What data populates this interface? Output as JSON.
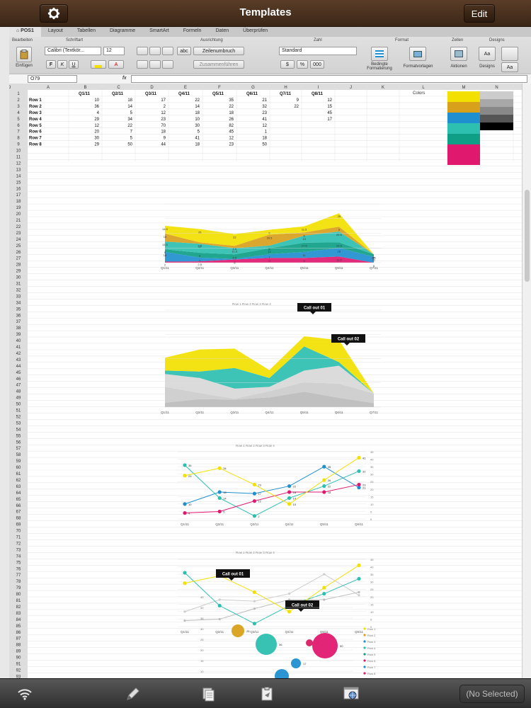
{
  "topbar": {
    "title": "Templates",
    "edit_label": "Edit"
  },
  "ribbon": {
    "tabs": [
      "POS1",
      "Layout",
      "Tabellen",
      "Diagramme",
      "SmartArt",
      "Formeln",
      "Daten",
      "Überprüfen"
    ],
    "groups": [
      "Bearbeiten",
      "Schriftart",
      "Ausrichtung",
      "Zahl",
      "Format",
      "Zellen",
      "Designs"
    ],
    "paste_label": "Einfügen",
    "font_name": "Calibri (Textkör...",
    "font_size": "12",
    "wrap_label": "Zeilenumbruch",
    "merge_label": "Zusammenführen",
    "number_format": "Standard",
    "cond_format_label": "Bedingte Formatierung",
    "format_templates_label": "Formatvorlagen",
    "actions_label": "Aktionen",
    "designs_label": "Designs",
    "cell_ref": "O79",
    "fx": "fx"
  },
  "sheet": {
    "columns": [
      "A",
      "B",
      "C",
      "D",
      "E",
      "F",
      "G",
      "H",
      "I",
      "J",
      "K",
      "L",
      "M",
      "N",
      "O"
    ],
    "header_row": [
      "",
      "Q1/11",
      "Q2/11",
      "Q3/11",
      "Q4/11",
      "Q5/11",
      "Q6/11",
      "Q7/11",
      "Q8/11"
    ],
    "rows": [
      [
        "Row 1",
        "10",
        "18",
        "17",
        "22",
        "35",
        "21",
        "9",
        "12"
      ],
      [
        "Row 2",
        "36",
        "14",
        "2",
        "14",
        "22",
        "32",
        "22",
        "15"
      ],
      [
        "Row 3",
        "4",
        "5",
        "12",
        "18",
        "18",
        "23",
        "",
        "45"
      ],
      [
        "Row 4",
        "29",
        "34",
        "23",
        "10",
        "26",
        "41",
        "",
        "17"
      ],
      [
        "Row 5",
        "12",
        "22",
        "70",
        "30",
        "82",
        "12",
        "",
        ""
      ],
      [
        "Row 6",
        "20",
        "7",
        "18",
        "5",
        "45",
        "1",
        "",
        ""
      ],
      [
        "Row 7",
        "30",
        "5",
        "9",
        "41",
        "12",
        "18",
        "",
        ""
      ],
      [
        "Row 8",
        "29",
        "50",
        "44",
        "18",
        "23",
        "50",
        "",
        ""
      ]
    ],
    "colors_label": "Colors",
    "palette": [
      "#f2e100",
      "#d9a01c",
      "#1f8fd0",
      "#2dbfb0",
      "#0e9f86",
      "#e0196f",
      "#cccccc",
      "#a8a8a8",
      "#888888",
      "#555555",
      "#000000"
    ]
  },
  "charts": {
    "quarters": [
      "Q1/11",
      "Q2/11",
      "Q3/11",
      "Q4/11",
      "Q5/11",
      "Q6/11",
      "Q7/11"
    ],
    "quarters6": [
      "Q1/11",
      "Q2/11",
      "Q3/11",
      "Q4/11",
      "Q5/11",
      "Q6/11"
    ],
    "legend": [
      "Row 1",
      "Row 2",
      "Row 3",
      "Row 4"
    ],
    "callout1": "Call out 01",
    "callout2": "Call out 02",
    "bubble_legend": [
      "Row 1",
      "Row 2",
      "Row 3",
      "Row 4",
      "Row 5",
      "Row 6",
      "Row 7",
      "Row 8"
    ],
    "line_values": {
      "row1": [
        10,
        18,
        17,
        22,
        35,
        21
      ],
      "row2": [
        36,
        14,
        2,
        14,
        22,
        32
      ],
      "row3": [
        4,
        5,
        12,
        18,
        18,
        23
      ],
      "row4": [
        29,
        34,
        23,
        10,
        26,
        41
      ]
    }
  },
  "bottombar": {
    "selection": "(No Selected)"
  }
}
